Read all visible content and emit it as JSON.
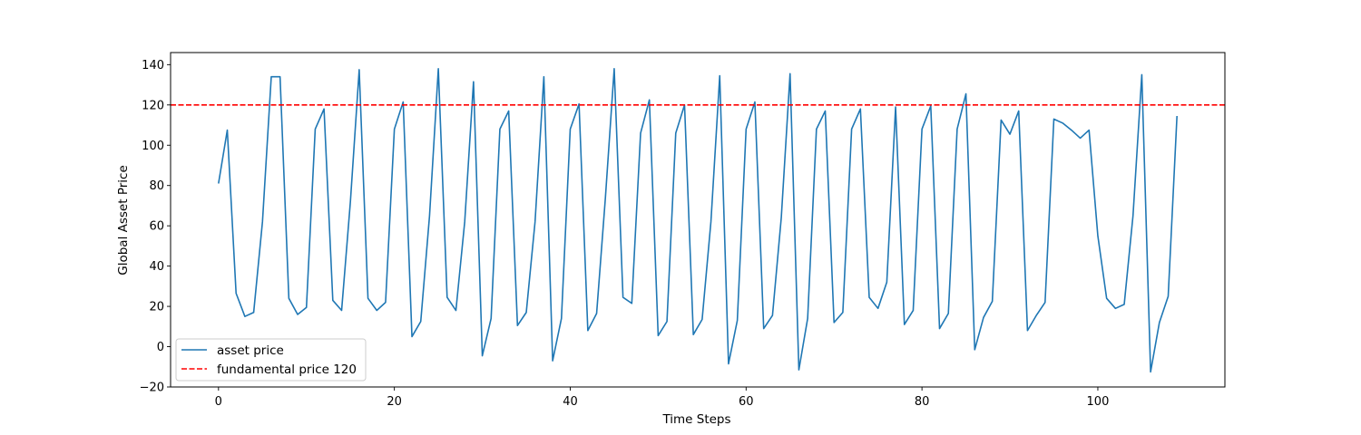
{
  "chart_data": {
    "type": "line",
    "xlabel": "Time Steps",
    "ylabel": "Global Asset Price",
    "xlim": [
      -5.45,
      114.45
    ],
    "ylim": [
      -20,
      146
    ],
    "xticks": [
      0,
      20,
      40,
      60,
      80,
      100
    ],
    "yticks": [
      -20,
      0,
      20,
      40,
      60,
      80,
      100,
      120,
      140
    ],
    "grid": false,
    "legend_position": "lower-left",
    "series": [
      {
        "name": "asset price",
        "color": "#1f77b4",
        "style": "solid",
        "x": [
          0,
          1,
          2,
          3,
          4,
          5,
          6,
          7,
          8,
          9,
          10,
          11,
          12,
          13,
          14,
          15,
          16,
          17,
          18,
          19,
          20,
          21,
          22,
          23,
          24,
          25,
          26,
          27,
          28,
          29,
          30,
          31,
          32,
          33,
          34,
          35,
          36,
          37,
          38,
          39,
          40,
          41,
          42,
          43,
          44,
          45,
          46,
          47,
          48,
          49,
          50,
          51,
          52,
          53,
          54,
          55,
          56,
          57,
          58,
          59,
          60,
          61,
          62,
          63,
          64,
          65,
          66,
          67,
          68,
          69,
          70,
          71,
          72,
          73,
          74,
          75,
          76,
          77,
          78,
          79,
          80,
          81,
          82,
          83,
          84,
          85,
          86,
          87,
          88,
          89,
          90,
          91,
          92,
          93,
          94,
          95,
          96,
          97,
          98,
          99,
          100,
          101,
          102,
          103,
          104,
          105,
          106,
          107,
          108,
          109
        ],
        "y": [
          81,
          107.5,
          26.5,
          15,
          17,
          62,
          134,
          134,
          24,
          16,
          19.5,
          108,
          118,
          23,
          18,
          72,
          137.5,
          24,
          18,
          22,
          108,
          121.5,
          5,
          12.5,
          65,
          138,
          24.5,
          18,
          62,
          131.5,
          -4.5,
          14,
          108,
          117,
          10.5,
          17,
          62,
          134,
          -7,
          14,
          108,
          120.5,
          8,
          16.5,
          74,
          138,
          24.5,
          21.5,
          106,
          122.5,
          5.5,
          12.5,
          106,
          120,
          6,
          13.5,
          62,
          134.5,
          -8.5,
          13,
          108,
          121.5,
          9,
          15.5,
          64,
          135.5,
          -11.5,
          14,
          108,
          117,
          12,
          17,
          108,
          118,
          24.5,
          19,
          32,
          119,
          11,
          18,
          108,
          119.5,
          9,
          16.5,
          108,
          125.5,
          -1.5,
          14.5,
          22.5,
          112.5,
          105.5,
          117,
          8,
          15.5,
          22,
          113,
          111,
          107.5,
          103.5,
          107.5,
          55,
          24,
          19,
          21,
          65,
          135,
          -12.5,
          12,
          25,
          114.5
        ]
      },
      {
        "name": "fundamental price 120",
        "color": "#ff0000",
        "style": "dashed",
        "constant": 120
      }
    ]
  }
}
